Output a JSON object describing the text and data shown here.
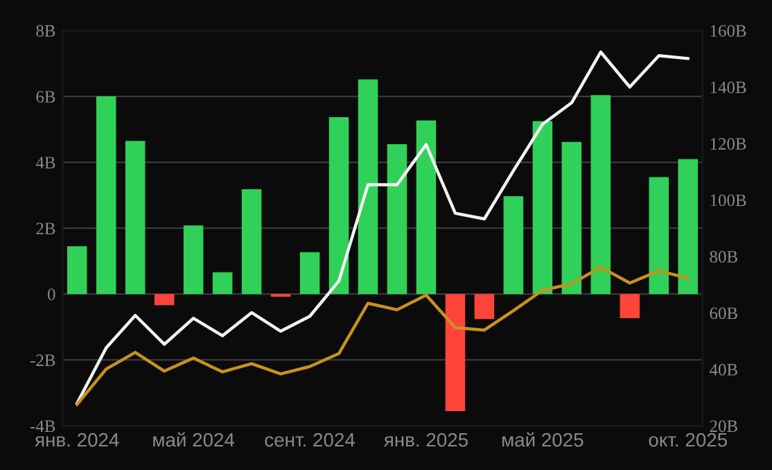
{
  "chart_data": {
    "type": "bar",
    "categories": [
      "янв. 2024",
      null,
      null,
      null,
      "май 2024",
      null,
      null,
      null,
      "сент. 2024",
      null,
      null,
      null,
      "янв. 2025",
      null,
      null,
      null,
      "май 2025",
      null,
      null,
      null,
      null,
      "окт. 2025"
    ],
    "series": [
      {
        "colors": [
          "#30d158",
          "#30d158",
          "#30d158",
          "#ff453a",
          "#30d158",
          "#30d158",
          "#30d158",
          "#ff453a",
          "#30d158",
          "#30d158",
          "#30d158",
          "#30d158",
          "#30d158",
          "#ff453a",
          "#ff453a",
          "#30d158",
          "#30d158",
          "#30d158",
          "#30d158",
          "#ff453a",
          "#30d158",
          "#30d158"
        ],
        "values": [
          1.45,
          6.0,
          4.65,
          -0.34,
          2.08,
          0.66,
          3.18,
          -0.08,
          1.27,
          5.37,
          6.52,
          4.55,
          5.27,
          -3.55,
          -0.76,
          2.97,
          5.25,
          4.62,
          6.04,
          -0.73,
          3.55,
          4.1
        ]
      },
      {
        "type": "line",
        "axis": "y2",
        "color": "#f2f2f2",
        "values": [
          28,
          47.6,
          59.1,
          48.9,
          58.1,
          51.9,
          60.1,
          53.5,
          58.8,
          71.3,
          105.4,
          105.4,
          119.6,
          95.3,
          93.3,
          110.4,
          126.8,
          134.4,
          152.4,
          140,
          151.1,
          150.1
        ]
      },
      {
        "type": "line",
        "axis": "y2",
        "color": "#c8921e",
        "values": [
          27.6,
          40.1,
          46,
          39.4,
          44,
          39.1,
          42,
          38.4,
          41,
          45.6,
          63.4,
          61.1,
          66.3,
          54.8,
          53.9,
          60.8,
          68,
          70.3,
          76.2,
          70.6,
          74.9,
          72.3
        ]
      }
    ],
    "ylim": [
      -4,
      8
    ],
    "yticks": [
      {
        "value": -4,
        "label": "-4B"
      },
      {
        "value": -2,
        "label": "-2B"
      },
      {
        "value": 0,
        "label": "0"
      },
      {
        "value": 2,
        "label": "2B"
      },
      {
        "value": 4,
        "label": "4B"
      },
      {
        "value": 6,
        "label": "6B"
      },
      {
        "value": 8,
        "label": "8B"
      }
    ],
    "y2lim": [
      20,
      160
    ],
    "y2ticks": [
      {
        "value": 20,
        "label": "20B"
      },
      {
        "value": 40,
        "label": "40B"
      },
      {
        "value": 60,
        "label": "60B"
      },
      {
        "value": 80,
        "label": "80B"
      },
      {
        "value": 100,
        "label": "100B"
      },
      {
        "value": 120,
        "label": "120B"
      },
      {
        "value": 140,
        "label": "140B"
      },
      {
        "value": 160,
        "label": "160B"
      }
    ],
    "grid": "y",
    "legend": false,
    "marker": "none"
  }
}
